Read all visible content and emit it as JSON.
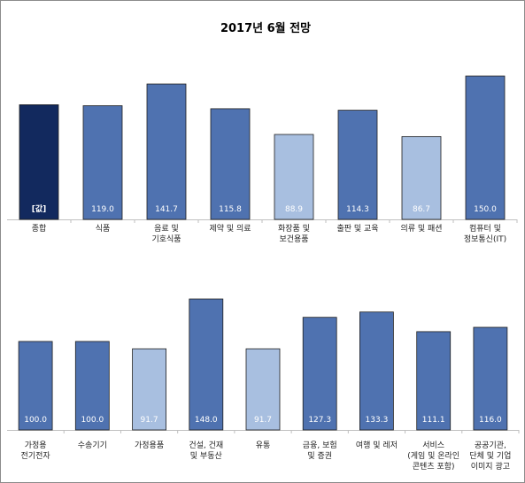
{
  "chart_data": {
    "type": "bar",
    "title": "2017년 6월 전망",
    "panels": [
      {
        "categories": [
          [
            "종합"
          ],
          [
            "식품"
          ],
          [
            "음료 및",
            "기호식품"
          ],
          [
            "제약 및 의료"
          ],
          [
            "화장품 및",
            "보건용품"
          ],
          [
            "출판 및 교육"
          ],
          [
            "의류 및 패션"
          ],
          [
            "컴퓨터 및",
            "정보통신(IT)"
          ]
        ],
        "values": [
          120.0,
          119.0,
          141.7,
          115.8,
          88.9,
          114.3,
          86.7,
          150.0
        ],
        "value_labels": [
          "[값]",
          "119.0",
          "141.7",
          "115.8",
          "88.9",
          "114.3",
          "86.7",
          "150.0"
        ],
        "colors": [
          "#12295e",
          "#4f72b0",
          "#4f72b0",
          "#4f72b0",
          "#a8bfe0",
          "#4f72b0",
          "#a8bfe0",
          "#4f72b0"
        ]
      },
      {
        "categories": [
          [
            "가정용",
            "전기전자"
          ],
          [
            "수송기기"
          ],
          [
            "가정용품"
          ],
          [
            "건설, 건재",
            "및 부동산"
          ],
          [
            "유통"
          ],
          [
            "금융, 보험",
            "및 증권"
          ],
          [
            "여행 및 레저"
          ],
          [
            "서비스",
            "(게임 및 온라인",
            "콘텐츠 포함)"
          ],
          [
            "공공기관,",
            "단체 및 기업",
            "이미지 광고"
          ]
        ],
        "values": [
          100.0,
          100.0,
          91.7,
          148.0,
          91.7,
          127.3,
          133.3,
          111.1,
          116.0
        ],
        "value_labels": [
          "100.0",
          "100.0",
          "91.7",
          "148.0",
          "91.7",
          "127.3",
          "133.3",
          "111.1",
          "116.0"
        ],
        "colors": [
          "#4f72b0",
          "#4f72b0",
          "#a8bfe0",
          "#4f72b0",
          "#a8bfe0",
          "#4f72b0",
          "#4f72b0",
          "#4f72b0",
          "#4f72b0"
        ]
      }
    ],
    "grid": false,
    "legend": "none"
  }
}
